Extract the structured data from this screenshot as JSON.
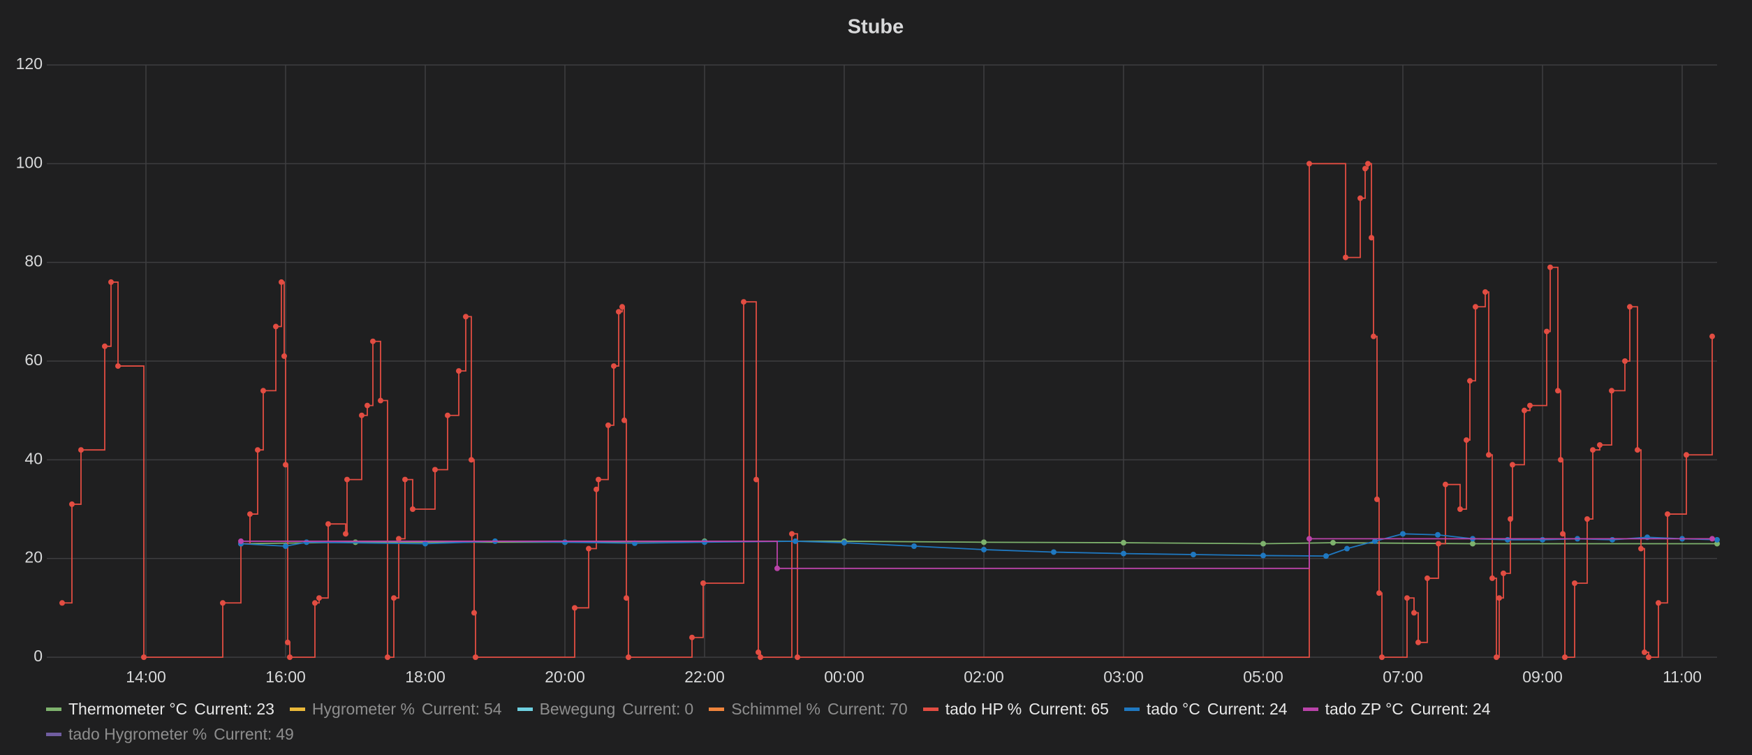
{
  "chart_data": {
    "type": "line",
    "title": "Stube",
    "ylim": [
      0,
      120
    ],
    "yticks": [
      0,
      20,
      40,
      60,
      80,
      100,
      120
    ],
    "xlim": [
      12.58,
      36.5
    ],
    "xticks": [
      {
        "value": 14,
        "label": "14:00"
      },
      {
        "value": 16,
        "label": "16:00"
      },
      {
        "value": 18,
        "label": "18:00"
      },
      {
        "value": 20,
        "label": "20:00"
      },
      {
        "value": 22,
        "label": "22:00"
      },
      {
        "value": 24,
        "label": "00:00"
      },
      {
        "value": 26,
        "label": "02:00"
      },
      {
        "value": 28,
        "label": "03:00"
      },
      {
        "value": 30,
        "label": "05:00"
      },
      {
        "value": 32,
        "label": "07:00"
      },
      {
        "value": 34,
        "label": "09:00"
      },
      {
        "value": 36,
        "label": "11:00"
      }
    ],
    "grid": true,
    "legend": "bottom",
    "current_label": "Current:",
    "series": [
      {
        "name": "Thermometer °C",
        "color": "#7eb26d",
        "current": 23,
        "hidden": false,
        "steps": false,
        "x": [
          15.36,
          17,
          20,
          22,
          24,
          26,
          28,
          30,
          31,
          33,
          36.5
        ],
        "values": [
          23,
          23.3,
          23.3,
          23.5,
          23.5,
          23.3,
          23.2,
          23,
          23.2,
          23,
          23
        ]
      },
      {
        "name": "Hygrometer %",
        "color": "#eab839",
        "current": 54,
        "hidden": true
      },
      {
        "name": "Bewegung",
        "color": "#6ed0e0",
        "current": 0,
        "hidden": true
      },
      {
        "name": "Schimmel %",
        "color": "#ef843c",
        "current": 70,
        "hidden": true
      },
      {
        "name": "tado HP %",
        "color": "#e24d42",
        "current": 65,
        "hidden": false,
        "steps": true,
        "x": [
          12.8,
          12.94,
          13.07,
          13.41,
          13.5,
          13.6,
          13.97,
          15.1,
          15.36,
          15.49,
          15.6,
          15.68,
          15.86,
          15.94,
          15.98,
          16,
          16.03,
          16.06,
          16.42,
          16.48,
          16.61,
          16.86,
          16.88,
          17.09,
          17.17,
          17.25,
          17.36,
          17.46,
          17.55,
          17.62,
          17.71,
          17.82,
          18.14,
          18.32,
          18.48,
          18.58,
          18.66,
          18.7,
          18.72,
          20.14,
          20.34,
          20.45,
          20.48,
          20.62,
          20.7,
          20.77,
          20.82,
          20.85,
          20.88,
          20.91,
          21.82,
          21.98,
          22.56,
          22.74,
          22.77,
          22.8,
          23.25,
          23.33,
          30.66,
          31.18,
          31.39,
          31.46,
          31.5,
          31.55,
          31.58,
          31.63,
          31.66,
          31.7,
          32.06,
          32.16,
          32.22,
          32.35,
          32.51,
          32.61,
          32.82,
          32.91,
          32.96,
          33.04,
          33.18,
          33.23,
          33.28,
          33.34,
          33.38,
          33.44,
          33.54,
          33.57,
          33.74,
          33.82,
          34.06,
          34.11,
          34.22,
          34.26,
          34.29,
          34.32,
          34.46,
          34.64,
          34.72,
          34.82,
          34.99,
          35.18,
          35.25,
          35.36,
          35.41,
          35.46,
          35.52,
          35.66,
          35.79,
          36.06,
          36.43
        ],
        "values": [
          11,
          31,
          42,
          63,
          76,
          59,
          0,
          11,
          23,
          29,
          42,
          54,
          67,
          76,
          61,
          39,
          3,
          0,
          11,
          12,
          27,
          25,
          36,
          49,
          51,
          64,
          52,
          0,
          12,
          24,
          36,
          30,
          38,
          49,
          58,
          69,
          40,
          9,
          0,
          10,
          22,
          34,
          36,
          47,
          59,
          70,
          71,
          48,
          12,
          0,
          4,
          15,
          72,
          36,
          1,
          0,
          25,
          0,
          100,
          81,
          93,
          99,
          100,
          85,
          65,
          32,
          13,
          0,
          12,
          9,
          3,
          16,
          23,
          35,
          30,
          44,
          56,
          71,
          74,
          41,
          16,
          0,
          12,
          17,
          28,
          39,
          50,
          51,
          66,
          79,
          54,
          40,
          25,
          0,
          15,
          28,
          42,
          43,
          54,
          60,
          71,
          42,
          22,
          1,
          0,
          11,
          29,
          41,
          65
        ]
      },
      {
        "name": "tado °C",
        "color": "#1f78c1",
        "current": 24,
        "hidden": false,
        "steps": false,
        "x": [
          15.36,
          16,
          16.3,
          18,
          19,
          20,
          21,
          22,
          23.3,
          24,
          25,
          26,
          27,
          28,
          29,
          30,
          30.9,
          31.2,
          31.6,
          32,
          32.5,
          33,
          33.5,
          34,
          34.5,
          35,
          35.5,
          36,
          36.5
        ],
        "values": [
          23,
          22.5,
          23.3,
          23,
          23.5,
          23.3,
          23.1,
          23.3,
          23.5,
          23.2,
          22.5,
          21.8,
          21.3,
          21,
          20.8,
          20.6,
          20.5,
          22,
          23.5,
          25,
          24.8,
          24,
          23.8,
          23.8,
          24,
          23.8,
          24.3,
          24,
          23.8
        ]
      },
      {
        "name": "tado ZP °C",
        "color": "#ba43a9",
        "current": 24,
        "hidden": false,
        "steps": true,
        "x": [
          15.36,
          23.04,
          30.66,
          36.43
        ],
        "values": [
          23.5,
          18,
          24,
          24
        ]
      },
      {
        "name": "tado Hygrometer %",
        "color": "#705da0",
        "current": 49,
        "hidden": true
      }
    ]
  }
}
